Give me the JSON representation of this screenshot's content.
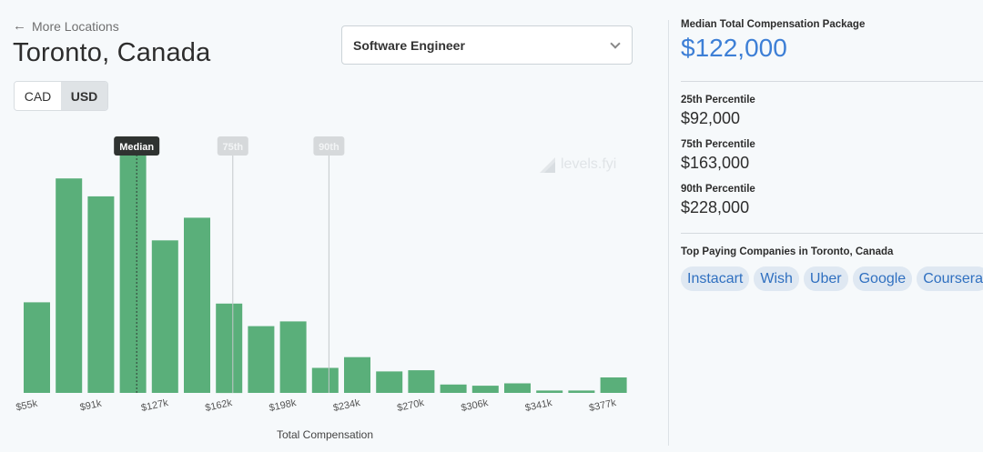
{
  "nav": {
    "back_label": "More Locations",
    "back_icon": "arrow-left-icon"
  },
  "location": {
    "title": "Toronto, Canada"
  },
  "currency": {
    "options": [
      "CAD",
      "USD"
    ],
    "selected": "USD"
  },
  "job_select": {
    "value": "Software Engineer"
  },
  "watermark": {
    "text": "levels.fyi"
  },
  "chart_data": {
    "type": "bar",
    "title": "",
    "xlabel": "Total Compensation",
    "ylabel": "",
    "bar_color": "#5aaf7a",
    "x_tick_labels": [
      "$55k",
      "$91k",
      "$127k",
      "$162k",
      "$198k",
      "$234k",
      "$270k",
      "$306k",
      "$341k",
      "$377k"
    ],
    "values": [
      76,
      180,
      165,
      200,
      128,
      147,
      75,
      56,
      60,
      21,
      30,
      18,
      19,
      7,
      6,
      8,
      2,
      2,
      13
    ],
    "ylim": [
      0,
      200
    ],
    "markers": [
      {
        "label": "Median",
        "value": "$122,000",
        "bar_index": 3.4,
        "style": "dark"
      },
      {
        "label": "75th",
        "value": "$163,000",
        "bar_index": 6.4,
        "style": "light"
      },
      {
        "label": "90th",
        "value": "$228,000",
        "bar_index": 9.4,
        "style": "light"
      }
    ],
    "grid": false,
    "legend": "none"
  },
  "stats": {
    "median_label": "Median Total Compensation Package",
    "median_value": "$122,000",
    "p25_label": "25th Percentile",
    "p25_value": "$92,000",
    "p75_label": "75th Percentile",
    "p75_value": "$163,000",
    "p90_label": "90th Percentile",
    "p90_value": "$228,000",
    "top_companies_label": "Top Paying Companies in Toronto, Canada",
    "companies": [
      "Instacart",
      "Wish",
      "Uber",
      "Google",
      "Coursera"
    ],
    "accent_color": "#3d7fd6"
  }
}
